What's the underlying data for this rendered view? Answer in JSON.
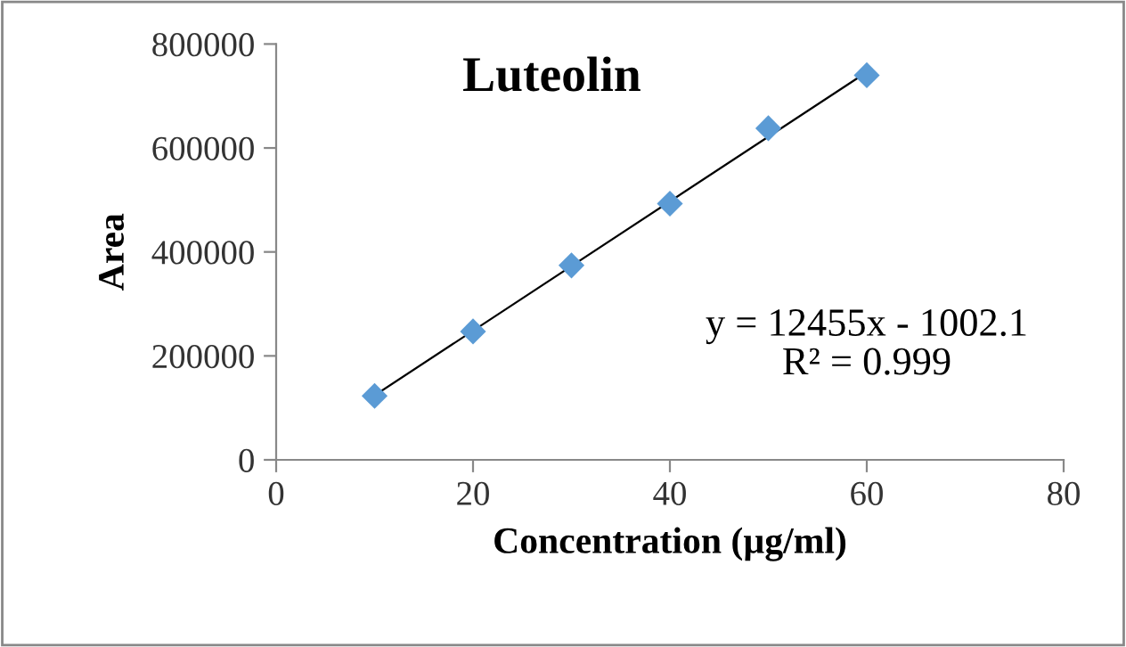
{
  "chart_data": {
    "type": "scatter",
    "title": "Luteolin",
    "xlabel": "Concentration (µg/ml)",
    "ylabel": "Area",
    "x": [
      10,
      20,
      30,
      40,
      50,
      60
    ],
    "series": [
      {
        "color": "#5b9bd5",
        "marker": "diamond",
        "values": [
          123000,
          247000,
          374000,
          493000,
          638000,
          740000
        ]
      },
      {
        "type": "line",
        "color": "#000000",
        "x": [
          10,
          60
        ],
        "values": [
          124000,
          746000
        ],
        "line_style": "solid",
        "marker": "none"
      }
    ],
    "annotations": [
      "y = 12455x - 1002.1\nR² = 0.999"
    ],
    "xlim": [
      0,
      80
    ],
    "xticks": [
      0,
      20,
      40,
      60,
      80
    ],
    "ylim": [
      0,
      800000
    ],
    "yticks": [
      0,
      200000,
      400000,
      600000,
      800000
    ],
    "grid": false,
    "legend": false
  }
}
